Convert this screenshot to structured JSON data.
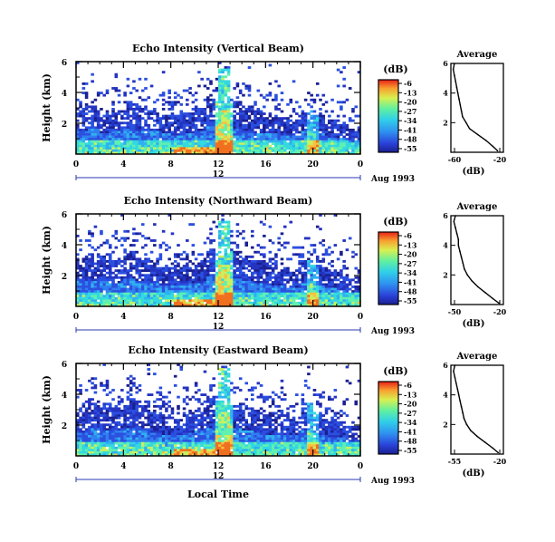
{
  "chart_data": [
    {
      "type": "heatmap",
      "title": "Echo Intensity (Vertical Beam)",
      "ylabel": "Height (km)",
      "ylim": [
        0,
        6
      ],
      "yticks": [
        "2",
        "4",
        "6"
      ],
      "xlim": [
        0,
        24
      ],
      "xticks": [
        "0",
        "4",
        "8",
        "12",
        "16",
        "20",
        "0"
      ],
      "date_bar_label": "12",
      "date_label": "Aug 1993",
      "colorbar": {
        "unit": "(dB)",
        "ticks": [
          "-6",
          "-13",
          "-20",
          "-27",
          "-34",
          "-41",
          "-48",
          "-55"
        ],
        "range": [
          -55,
          -6
        ]
      },
      "mean_echo_top_km": [
        3.0,
        3.2,
        2.6,
        2.9,
        3.4,
        3.1,
        2.9,
        2.6,
        2.5,
        2.7,
        3.0,
        3.6,
        5.6,
        3.4,
        3.1,
        2.8,
        2.6,
        2.4,
        2.3,
        2.9,
        2.6,
        2.2,
        2.0,
        1.6
      ],
      "profile": {
        "title": "Average",
        "xlabel": "(dB)",
        "xlim": [
          -63,
          -18
        ],
        "xticks": [
          "-60",
          "-20"
        ],
        "yticks": [
          "2",
          "4",
          "6"
        ],
        "ylim": [
          0,
          6
        ],
        "height_km": [
          0.1,
          0.4,
          0.8,
          1.2,
          1.6,
          2.0,
          2.4,
          2.8,
          3.2,
          3.6,
          4.0,
          4.4,
          4.8,
          5.2,
          5.6,
          6.0
        ],
        "avg_db": [
          -23,
          -27,
          -33,
          -40,
          -47,
          -50,
          -53,
          -54,
          -55,
          -56,
          -57,
          -58,
          -59,
          -60,
          -61,
          -60
        ]
      }
    },
    {
      "type": "heatmap",
      "title": "Echo Intensity (Northward Beam)",
      "ylabel": "Height (km)",
      "ylim": [
        0,
        6
      ],
      "yticks": [
        "2",
        "4",
        "6"
      ],
      "xlim": [
        0,
        24
      ],
      "xticks": [
        "0",
        "4",
        "8",
        "12",
        "16",
        "20",
        "0"
      ],
      "date_bar_label": "12",
      "date_label": "Aug 1993",
      "colorbar": {
        "unit": "(dB)",
        "ticks": [
          "-6",
          "-13",
          "-20",
          "-27",
          "-34",
          "-41",
          "-48",
          "-55"
        ],
        "range": [
          -55,
          -6
        ]
      },
      "mean_echo_top_km": [
        3.2,
        3.4,
        3.3,
        3.0,
        3.6,
        3.2,
        3.0,
        2.8,
        2.7,
        2.9,
        3.1,
        3.8,
        5.5,
        3.6,
        3.3,
        3.0,
        2.8,
        2.6,
        2.5,
        3.0,
        2.7,
        2.4,
        2.2,
        1.8
      ],
      "profile": {
        "title": "Average",
        "xlabel": "(dB)",
        "xlim": [
          -53,
          -18
        ],
        "xticks": [
          "-50",
          "-20"
        ],
        "yticks": [
          "2",
          "4",
          "6"
        ],
        "ylim": [
          0,
          6
        ],
        "height_km": [
          0.1,
          0.4,
          0.8,
          1.2,
          1.6,
          2.0,
          2.4,
          2.8,
          3.2,
          3.6,
          4.0,
          4.4,
          4.8,
          5.2,
          5.6,
          6.0
        ],
        "avg_db": [
          -21,
          -25,
          -30,
          -35,
          -39,
          -42,
          -44,
          -45,
          -46,
          -47,
          -48,
          -48,
          -49,
          -50,
          -51,
          -50
        ]
      }
    },
    {
      "type": "heatmap",
      "title": "Echo Intensity (Eastward Beam)",
      "ylabel": "Height (km)",
      "ylim": [
        0,
        6
      ],
      "yticks": [
        "2",
        "4",
        "6"
      ],
      "xlim": [
        0,
        24
      ],
      "xticks": [
        "0",
        "4",
        "8",
        "12",
        "16",
        "20",
        "0"
      ],
      "date_bar_label": "12",
      "date_label": "Aug 1993",
      "xlabel": "Local Time",
      "colorbar": {
        "unit": "(dB)",
        "ticks": [
          "-6",
          "-13",
          "-20",
          "-27",
          "-34",
          "-41",
          "-48",
          "-55"
        ],
        "range": [
          -55,
          -6
        ]
      },
      "mean_echo_top_km": [
        3.1,
        3.5,
        3.4,
        3.2,
        3.7,
        3.3,
        3.0,
        2.8,
        2.6,
        2.9,
        3.2,
        3.7,
        5.7,
        3.5,
        3.2,
        3.0,
        2.8,
        2.7,
        2.6,
        3.4,
        2.8,
        2.4,
        2.3,
        1.9
      ],
      "profile": {
        "title": "Average",
        "xlabel": "(dB)",
        "xlim": [
          -58,
          -18
        ],
        "xticks": [
          "-55",
          "-20"
        ],
        "yticks": [
          "2",
          "4",
          "6"
        ],
        "ylim": [
          0,
          6
        ],
        "height_km": [
          0.1,
          0.4,
          0.8,
          1.2,
          1.6,
          2.0,
          2.4,
          2.8,
          3.2,
          3.6,
          4.0,
          4.4,
          4.8,
          5.2,
          5.6,
          6.0
        ],
        "avg_db": [
          -22,
          -26,
          -32,
          -38,
          -43,
          -46,
          -48,
          -49,
          -50,
          -51,
          -52,
          -53,
          -54,
          -55,
          -56,
          -55
        ]
      }
    }
  ]
}
